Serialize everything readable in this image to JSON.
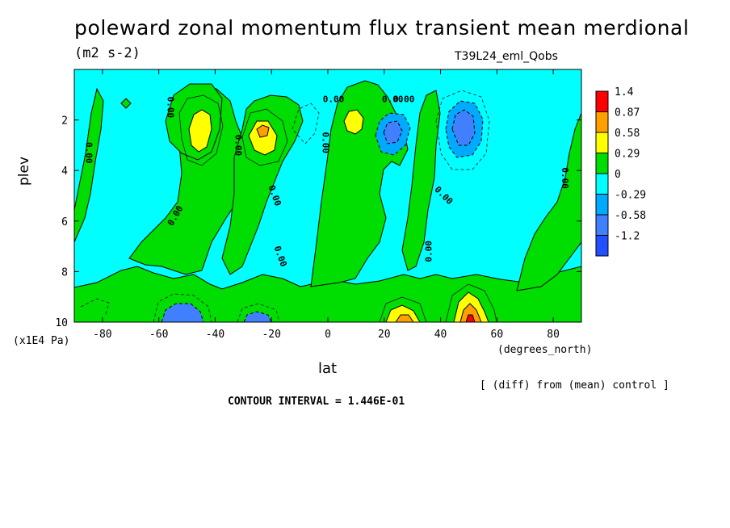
{
  "title": "poleward zonal momentum flux transient mean merdional",
  "units": "(m2 s-2)",
  "run_label": "T39L24_eml_Qobs",
  "diff_note": "[ (diff) from (mean) control ]",
  "contour_interval": "CONTOUR INTERVAL = 1.446E-01",
  "colors": {
    "cyan": "#00ffff",
    "green": "#00dd00",
    "yellow": "#ffff00",
    "orange": "#ffa000",
    "red": "#ff0000",
    "blue1": "#00aaff",
    "blue2": "#4080ff",
    "blue3": "#2050ff"
  },
  "chart_data": {
    "type": "heatmap",
    "title": "poleward zonal momentum flux transient mean merdional",
    "xlabel": "lat",
    "xunits": "(degrees_north)",
    "ylabel": "plev",
    "yunits": "(x1E4 Pa)",
    "xlim": [
      -90,
      90
    ],
    "ylim": [
      10,
      0
    ],
    "xticks": [
      -80,
      -60,
      -40,
      -20,
      0,
      20,
      40,
      60,
      80
    ],
    "yticks": [
      2,
      4,
      6,
      8,
      10
    ],
    "contour_label": "0.00",
    "colorbar": {
      "levels": [
        "1.4",
        "0.87",
        "0.58",
        "0.29",
        "0",
        "-0.29",
        "-0.58",
        "-1.2"
      ],
      "colors": [
        "#ff0000",
        "#ffa000",
        "#ffff00",
        "#00dd00",
        "#00ffff",
        "#00aaff",
        "#4080ff",
        "#2050ff"
      ]
    },
    "features": [
      {
        "kind": "positive-max",
        "lat": -45,
        "plev": 2.4,
        "level": "0.29"
      },
      {
        "kind": "positive-max",
        "lat": -21,
        "plev": 2.6,
        "level": "0.58"
      },
      {
        "kind": "positive-max",
        "lat": 9,
        "plev": 2.1,
        "level": "0.29"
      },
      {
        "kind": "negative-min",
        "lat": 23,
        "plev": 2.6,
        "level": "-0.58"
      },
      {
        "kind": "negative-min",
        "lat": 48,
        "plev": 2.4,
        "level": "-0.58"
      },
      {
        "kind": "negative-min",
        "lat": -49,
        "plev": 9.9,
        "level": "-0.58"
      },
      {
        "kind": "negative-min",
        "lat": -25,
        "plev": 9.9,
        "level": "-0.58"
      },
      {
        "kind": "positive-max",
        "lat": 25,
        "plev": 9.9,
        "level": "0.87"
      },
      {
        "kind": "positive-max",
        "lat": 48,
        "plev": 9.8,
        "level": "1.4"
      }
    ]
  }
}
